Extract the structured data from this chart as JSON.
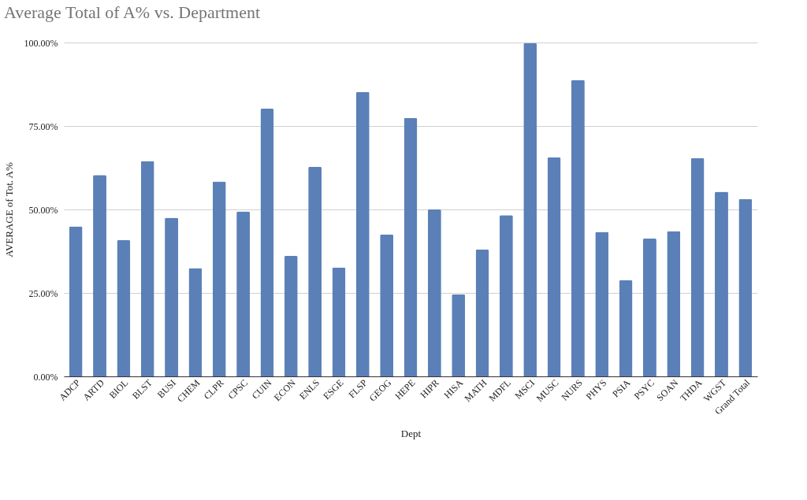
{
  "chart_data": {
    "type": "bar",
    "title": "Average Total of A% vs. Department",
    "xlabel": "Dept",
    "ylabel": "AVERAGE of Tot. A%",
    "categories": [
      "ADCP",
      "ARTD",
      "BIOL",
      "BLST",
      "BUSI",
      "CHEM",
      "CLPR",
      "CPSC",
      "CUIN",
      "ECON",
      "ENLS",
      "ESGE",
      "FLSP",
      "GEOG",
      "HEPE",
      "HIPR",
      "HISA",
      "MATH",
      "MDFL",
      "MSCI",
      "MUSC",
      "NURS",
      "PHYS",
      "PSIA",
      "PSYC",
      "SOAN",
      "THDA",
      "WGST",
      "Grand Total"
    ],
    "values": [
      44.9,
      60.3,
      40.8,
      64.5,
      47.5,
      32.4,
      58.4,
      49.4,
      80.2,
      36.1,
      62.8,
      32.6,
      85.2,
      42.5,
      77.4,
      50.0,
      24.6,
      38.0,
      48.3,
      99.8,
      65.6,
      88.8,
      43.3,
      28.8,
      41.3,
      43.5,
      65.4,
      55.3,
      53.1
    ],
    "color": "#5b80b8",
    "ylim": [
      0,
      100
    ],
    "yticks": [
      {
        "value": 0,
        "label": "0.00%"
      },
      {
        "value": 25,
        "label": "25.00%"
      },
      {
        "value": 50,
        "label": "50.00%"
      },
      {
        "value": 75,
        "label": "75.00%"
      },
      {
        "value": 100,
        "label": "100.00%"
      }
    ],
    "grid": "y"
  }
}
